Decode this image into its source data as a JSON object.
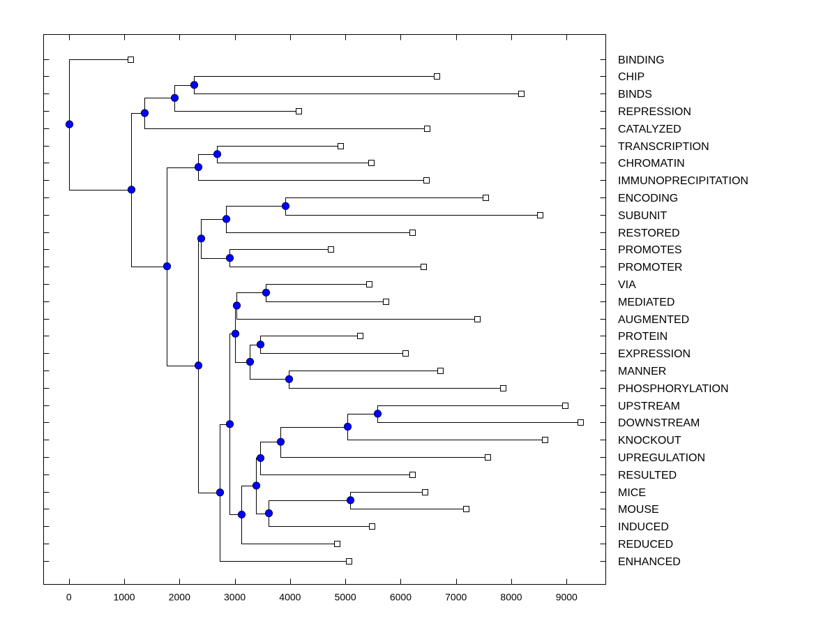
{
  "chart_data": {
    "type": "dendrogram",
    "title": "",
    "xlabel": "",
    "ylabel": "",
    "xlim": [
      -457,
      9709
    ],
    "x_ticks": [
      0,
      1000,
      2000,
      3000,
      4000,
      5000,
      6000,
      7000,
      8000,
      9000
    ],
    "x_tick_labels": [
      "0",
      "1000",
      "2000",
      "3000",
      "4000",
      "5000",
      "6000",
      "7000",
      "8000",
      "9000"
    ],
    "grid": false,
    "label_placement": "right",
    "colors": {
      "node": "#0000ff",
      "line": "#000000",
      "leaf_marker": "#ffffff"
    },
    "leaves": [
      {
        "label": "BINDING",
        "x": 1115
      },
      {
        "label": "CHIP",
        "x": 6652
      },
      {
        "label": "BINDS",
        "x": 8176
      },
      {
        "label": "REPRESSION",
        "x": 4157
      },
      {
        "label": "CATALYZED",
        "x": 6475
      },
      {
        "label": "TRANSCRIPTION",
        "x": 4913
      },
      {
        "label": "CHROMATIN",
        "x": 5467
      },
      {
        "label": "IMMUNOPRECIPITATION",
        "x": 6463
      },
      {
        "label": "ENCODING",
        "x": 7534
      },
      {
        "label": "SUBUNIT",
        "x": 8516
      },
      {
        "label": "RESTORED",
        "x": 6211
      },
      {
        "label": "PROMOTES",
        "x": 4737
      },
      {
        "label": "PROMOTER",
        "x": 6412
      },
      {
        "label": "VIA",
        "x": 5430
      },
      {
        "label": "MEDIATED",
        "x": 5732
      },
      {
        "label": "AUGMENTED",
        "x": 7382
      },
      {
        "label": "PROTEIN",
        "x": 5266
      },
      {
        "label": "EXPRESSION",
        "x": 6085
      },
      {
        "label": "MANNER",
        "x": 6715
      },
      {
        "label": "PHOSPHORYLATION",
        "x": 7848
      },
      {
        "label": "UPSTREAM",
        "x": 8970
      },
      {
        "label": "DOWNSTREAM",
        "x": 9247
      },
      {
        "label": "KNOCKOUT",
        "x": 8604
      },
      {
        "label": "UPREGULATION",
        "x": 7571
      },
      {
        "label": "RESULTED",
        "x": 6211
      },
      {
        "label": "MICE",
        "x": 6438
      },
      {
        "label": "MOUSE",
        "x": 7181
      },
      {
        "label": "INDUCED",
        "x": 5480
      },
      {
        "label": "REDUCED",
        "x": 4850
      },
      {
        "label": "ENHANCED",
        "x": 5064
      }
    ],
    "nodes": {
      "root": {
        "x": 0,
        "children": [
          "L0",
          "A"
        ]
      },
      "A": {
        "x": 1120,
        "children": [
          "B",
          "C"
        ]
      },
      "B": {
        "x": 1361,
        "children": [
          "D",
          "L4"
        ]
      },
      "D": {
        "x": 1902,
        "children": [
          "E",
          "L3"
        ]
      },
      "E": {
        "x": 2255,
        "children": [
          "L1",
          "L2"
        ]
      },
      "C": {
        "x": 1764,
        "children": [
          "F",
          "G"
        ]
      },
      "F": {
        "x": 2331,
        "children": [
          "H",
          "L7"
        ]
      },
      "H": {
        "x": 2683,
        "children": [
          "L5",
          "L6"
        ]
      },
      "G": {
        "x": 2343,
        "children": [
          "I",
          "J"
        ]
      },
      "I": {
        "x": 2393,
        "children": [
          "K",
          "M"
        ]
      },
      "K": {
        "x": 2847,
        "children": [
          "N",
          "L10"
        ]
      },
      "N": {
        "x": 3918,
        "children": [
          "L8",
          "L9"
        ]
      },
      "M": {
        "x": 2910,
        "children": [
          "L11",
          "L12"
        ]
      },
      "J": {
        "x": 2733,
        "children": [
          "P",
          "L29"
        ]
      },
      "P": {
        "x": 2910,
        "children": [
          "Q",
          "R"
        ]
      },
      "Q": {
        "x": 2999,
        "children": [
          "S",
          "T"
        ]
      },
      "S": {
        "x": 3036,
        "children": [
          "U",
          "L15"
        ]
      },
      "U": {
        "x": 3566,
        "children": [
          "L13",
          "L14"
        ]
      },
      "T": {
        "x": 3276,
        "children": [
          "V",
          "W"
        ]
      },
      "V": {
        "x": 3465,
        "children": [
          "L16",
          "L17"
        ]
      },
      "W": {
        "x": 3981,
        "children": [
          "L18",
          "L19"
        ]
      },
      "R": {
        "x": 3125,
        "children": [
          "X",
          "L28"
        ]
      },
      "X": {
        "x": 3389,
        "children": [
          "Y",
          "Z"
        ]
      },
      "Y": {
        "x": 3465,
        "children": [
          "AA",
          "L24"
        ]
      },
      "AA": {
        "x": 3830,
        "children": [
          "AB",
          "L23"
        ]
      },
      "AB": {
        "x": 5039,
        "children": [
          "AC",
          "L22"
        ]
      },
      "AC": {
        "x": 5581,
        "children": [
          "L20",
          "L21"
        ]
      },
      "Z": {
        "x": 3612,
        "children": [
          "AD",
          "L27"
        ]
      },
      "AD": {
        "x": 5090,
        "children": [
          "L25",
          "L26"
        ]
      }
    }
  }
}
